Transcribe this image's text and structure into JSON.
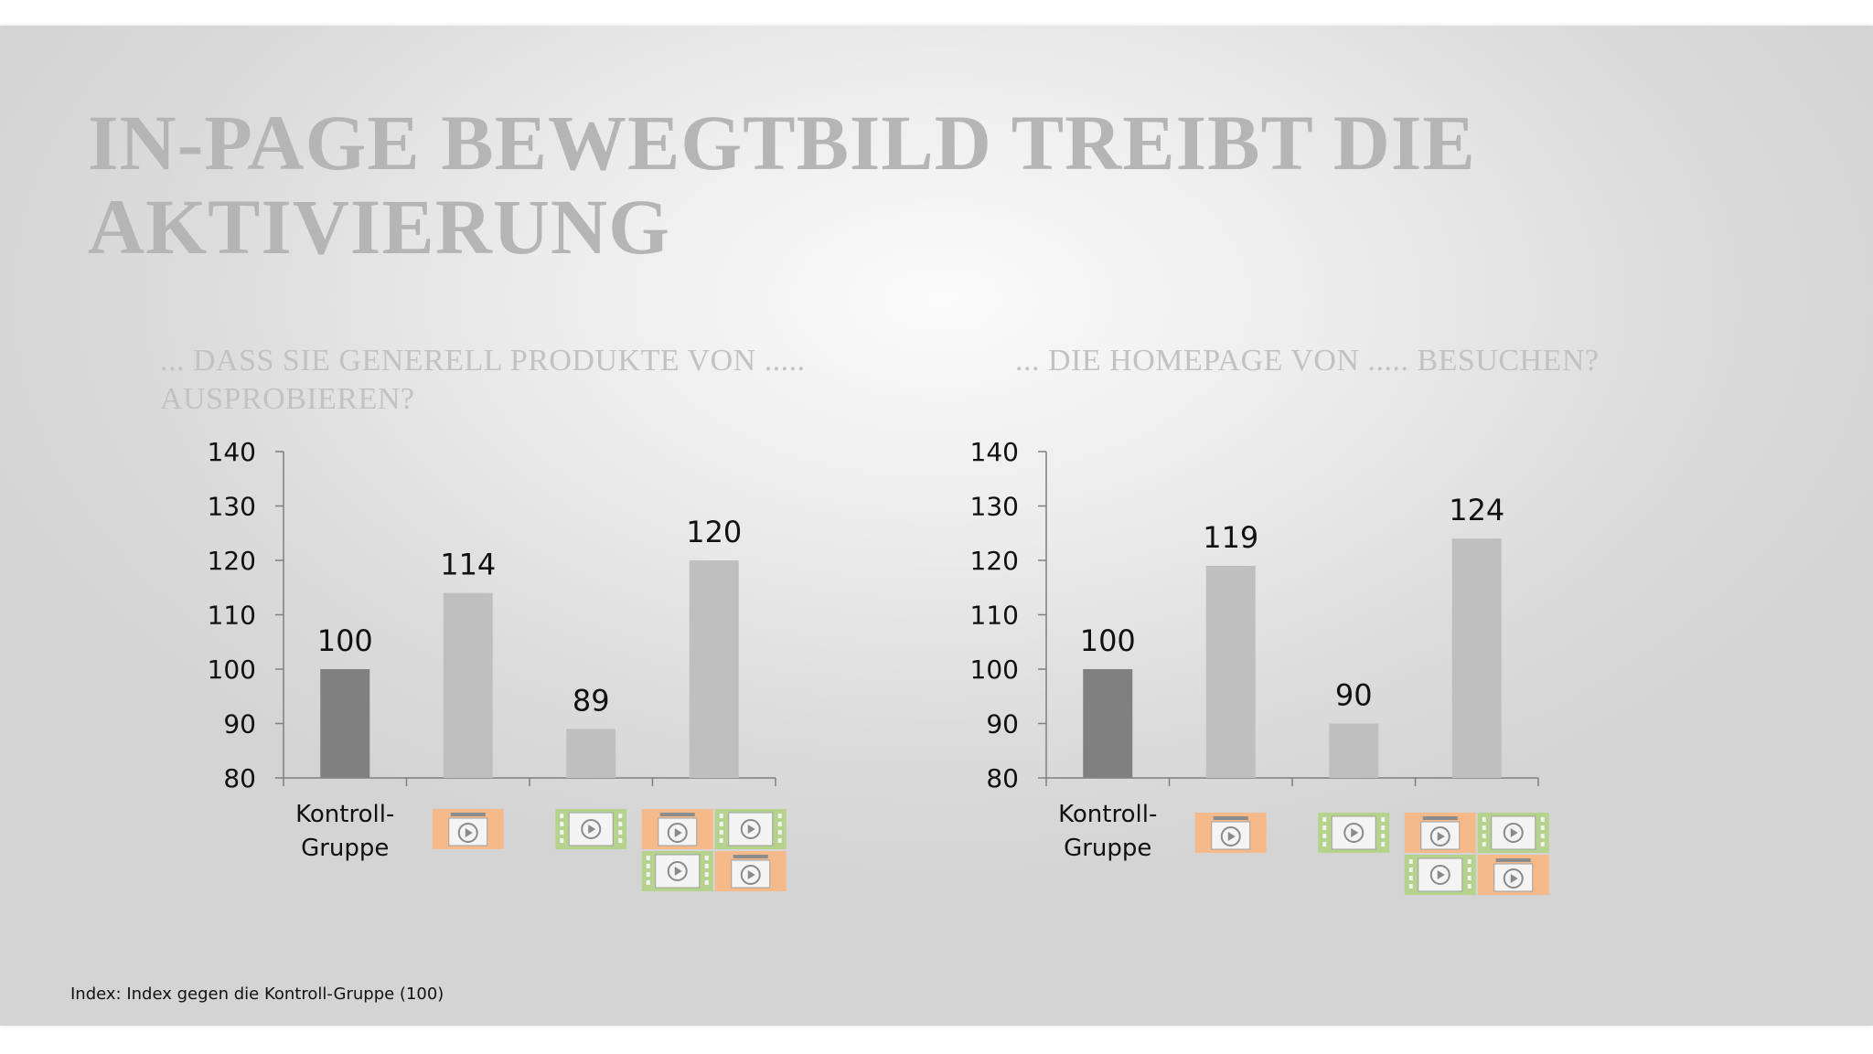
{
  "slide": {
    "title": "IN-PAGE BEWEGTBILD TREIBT DIE AKTIVIERUNG",
    "footnote": "Index: Index gegen die Kontroll-Gruppe (100)"
  },
  "colors": {
    "bar_control": "#808080",
    "bar_other": "#bfbfbf",
    "icon_orange": "#f6b98a",
    "icon_green": "#b6d38e",
    "title": "#b5b5b5"
  },
  "chart_data": [
    {
      "type": "bar",
      "title": "... DASS SIE GENERELL PRODUKTE VON ..... AUSPROBIEREN?",
      "categories": [
        "Kontroll-Gruppe",
        "inpage-ad-icon",
        "video-ad-icon",
        "combined-ad-icons"
      ],
      "category_labels": [
        "Kontroll-\nGruppe",
        "",
        "",
        ""
      ],
      "values": [
        100,
        114,
        89,
        120
      ],
      "ylim": [
        80,
        140
      ],
      "yticks": [
        80,
        90,
        100,
        110,
        120,
        130,
        140
      ],
      "xlabel": "",
      "ylabel": "",
      "grid": false
    },
    {
      "type": "bar",
      "title": "... DIE HOMEPAGE VON ..... BESUCHEN?",
      "categories": [
        "Kontroll-Gruppe",
        "inpage-ad-icon",
        "video-ad-icon",
        "combined-ad-icons"
      ],
      "category_labels": [
        "Kontroll-\nGruppe",
        "",
        "",
        ""
      ],
      "values": [
        100,
        119,
        90,
        124
      ],
      "ylim": [
        80,
        140
      ],
      "yticks": [
        80,
        90,
        100,
        110,
        120,
        130,
        140
      ],
      "xlabel": "",
      "ylabel": "",
      "grid": false
    }
  ]
}
